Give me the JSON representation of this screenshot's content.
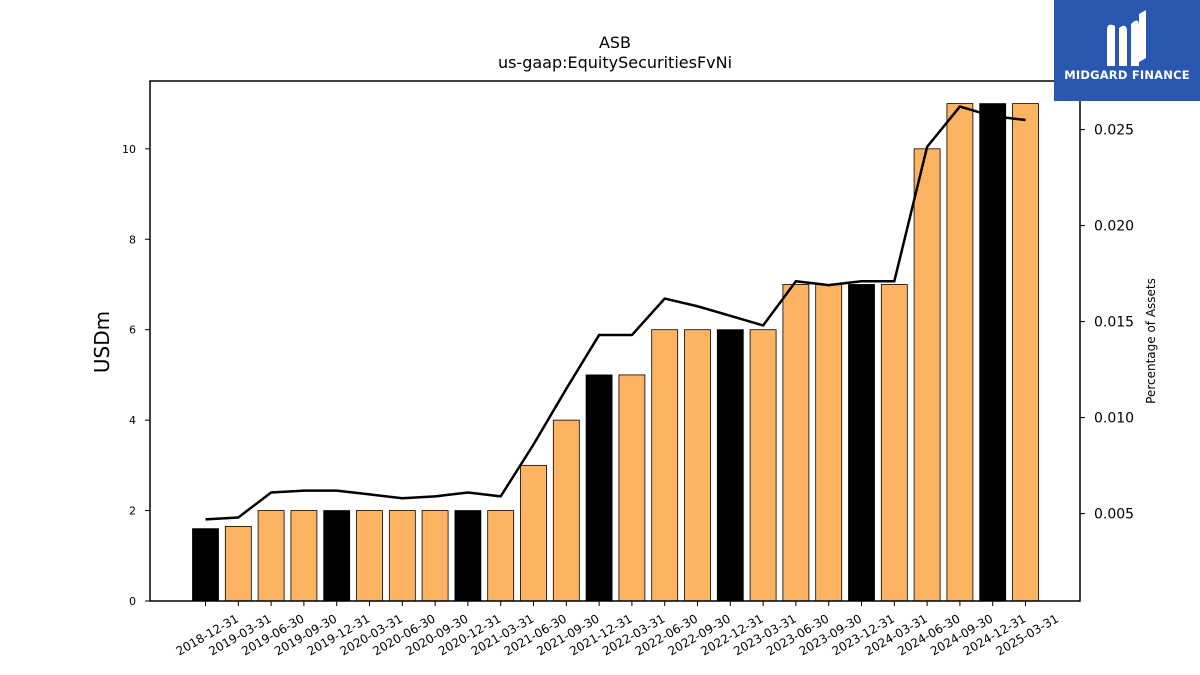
{
  "chart_data": {
    "type": "bar",
    "title": "ASB",
    "subtitle": "us-gaap:EquitySecuritiesFvNi",
    "ylabel": "USDm",
    "y2label": "Percentage of Assets",
    "categories": [
      "2018-12-31",
      "2019-03-31",
      "2019-06-30",
      "2019-09-30",
      "2019-12-31",
      "2020-03-31",
      "2020-06-30",
      "2020-09-30",
      "2020-12-31",
      "2021-03-31",
      "2021-06-30",
      "2021-09-30",
      "2021-12-31",
      "2022-03-31",
      "2022-06-30",
      "2022-09-30",
      "2022-12-31",
      "2023-03-31",
      "2023-06-30",
      "2023-09-30",
      "2023-12-31",
      "2024-03-31",
      "2024-06-30",
      "2024-09-30",
      "2024-12-31",
      "2025-03-31"
    ],
    "series": [
      {
        "type": "bar",
        "values": [
          1.6,
          1.65,
          2,
          2,
          2,
          2,
          2,
          2,
          2,
          2,
          3,
          4,
          5,
          5,
          6,
          6,
          6,
          6,
          7,
          7,
          7,
          7,
          10,
          11,
          11,
          11
        ]
      },
      {
        "type": "line",
        "axis": "right",
        "values": [
          0.0047,
          0.0048,
          0.0061,
          0.0062,
          0.0062,
          0.006,
          0.0058,
          0.0059,
          0.0061,
          0.0059,
          0.0086,
          0.0115,
          0.0143,
          0.0143,
          0.0162,
          0.0158,
          0.0153,
          0.0148,
          0.0171,
          0.0169,
          0.0171,
          0.0171,
          0.0241,
          0.0262,
          0.0257,
          0.0255
        ]
      }
    ],
    "bar_highlight": [
      true,
      false,
      false,
      false,
      true,
      false,
      false,
      false,
      true,
      false,
      false,
      false,
      true,
      false,
      false,
      false,
      true,
      false,
      false,
      false,
      true,
      false,
      false,
      false,
      true,
      false
    ],
    "ylim": [
      0,
      11.5
    ],
    "y2lim": [
      0.00045,
      0.02753
    ],
    "yticks": [
      0,
      2,
      4,
      6,
      8,
      10
    ],
    "y2ticks": [
      0.005,
      0.01,
      0.015,
      0.02,
      0.025
    ],
    "y2tick_labels": [
      "0.005",
      "0.010",
      "0.015",
      "0.020",
      "0.025"
    ],
    "grid": false,
    "colors": {
      "bar": "#fdb462",
      "bar_highlight": "#000000",
      "line": "#000000"
    }
  },
  "logo": {
    "text": "MIDGARD FINANCE",
    "background": "#2a57b0"
  }
}
